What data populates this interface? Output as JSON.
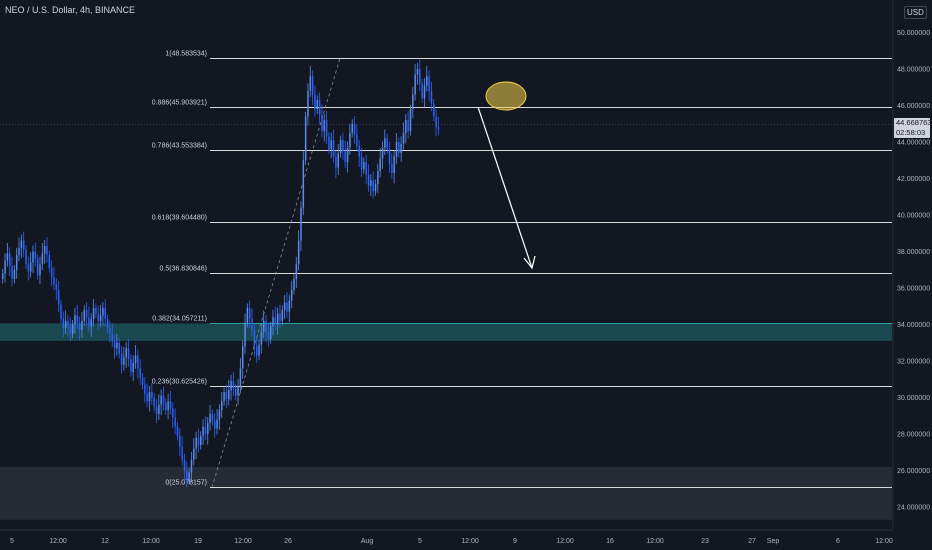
{
  "header": {
    "title": "NEO / U.S. Dollar, 4h, BINANCE",
    "currency": "USD"
  },
  "price_badge": {
    "price": "44.668763",
    "countdown": "02:58:03"
  },
  "colors": {
    "background": "#131722",
    "candle": "#2962ff",
    "candle_light": "#5b8def",
    "fib_line": "#d9d9d9",
    "fib_highlight": "#26a69a",
    "zone_teal": "#1e5a5f",
    "zone_gray": "#2a2e39",
    "ellipse": "#f2d04a",
    "arrow": "#ffffff"
  },
  "chart_data": {
    "type": "candlestick",
    "yaxis": {
      "labels": [
        "50.000000",
        "48.000000",
        "46.000000",
        "44.000000",
        "42.000000",
        "40.000000",
        "38.000000",
        "36.000000",
        "34.000000",
        "32.000000",
        "30.000000",
        "28.000000",
        "26.000000",
        "24.000000"
      ],
      "values": [
        50,
        48,
        46,
        44,
        42,
        40,
        38,
        36,
        34,
        32,
        30,
        28,
        26,
        24
      ],
      "ylim": [
        23.2,
        51.2
      ]
    },
    "xaxis": {
      "labels": [
        "5",
        "12:00",
        "12",
        "12:00",
        "19",
        "12:00",
        "26",
        "Aug",
        "5",
        "12:00",
        "9",
        "12:00",
        "16",
        "12:00",
        "23",
        "27",
        "Sep",
        "6",
        "12:00"
      ]
    },
    "fib_levels": [
      {
        "ratio": "1",
        "value": 48.583534,
        "label": "1(48.583534)"
      },
      {
        "ratio": "0.886",
        "value": 45.903921,
        "label": "0.886(45.903921)"
      },
      {
        "ratio": "0.786",
        "value": 43.553384,
        "label": "0.786(43.553384)"
      },
      {
        "ratio": "0.618",
        "value": 39.60448,
        "label": "0.618(39.604480)"
      },
      {
        "ratio": "0.5",
        "value": 36.830846,
        "label": "0.5(36.830846)"
      },
      {
        "ratio": "0.382",
        "value": 34.057211,
        "label": "0.382(34.057211)",
        "highlight": true
      },
      {
        "ratio": "0.236",
        "value": 30.625426,
        "label": "0.236(30.625426)"
      },
      {
        "ratio": "0",
        "value": 25.078157,
        "label": "0(25.078157)"
      }
    ],
    "zones": [
      {
        "from": 33.1,
        "to": 34.057211,
        "type": "teal"
      },
      {
        "from": 23.3,
        "to": 26.2,
        "type": "gray"
      }
    ],
    "closes": [
      36.8,
      37.5,
      37.9,
      37.2,
      36.5,
      37.0,
      37.8,
      38.2,
      38.6,
      38.1,
      37.3,
      36.9,
      37.4,
      38.0,
      37.6,
      36.7,
      37.3,
      37.9,
      38.3,
      37.8,
      37.1,
      36.6,
      36.2,
      35.9,
      35.1,
      34.3,
      33.8,
      34.2,
      33.9,
      33.5,
      34.0,
      34.5,
      34.1,
      33.7,
      34.2,
      34.8,
      34.4,
      33.9,
      34.3,
      34.9,
      34.6,
      34.2,
      34.5,
      34.9,
      34.3,
      33.8,
      33.5,
      33.1,
      32.7,
      33.0,
      32.4,
      31.8,
      32.2,
      32.7,
      32.1,
      31.4,
      31.9,
      32.3,
      31.6,
      31.1,
      30.7,
      30.2,
      29.8,
      30.3,
      30.0,
      29.5,
      29.1,
      29.6,
      30.1,
      29.7,
      29.3,
      29.8,
      29.4,
      28.9,
      28.4,
      27.9,
      27.3,
      26.6,
      26.0,
      25.5,
      25.9,
      26.6,
      27.2,
      27.8,
      27.4,
      27.9,
      28.4,
      28.0,
      28.6,
      29.1,
      28.7,
      28.3,
      28.8,
      29.3,
      29.8,
      30.3,
      29.9,
      30.4,
      30.9,
      30.5,
      30.1,
      30.6,
      31.6,
      32.8,
      34.1,
      34.9,
      34.3,
      33.7,
      32.8,
      32.3,
      32.9,
      33.6,
      34.2,
      33.6,
      33.2,
      33.9,
      34.4,
      34.0,
      34.6,
      34.2,
      34.8,
      35.2,
      34.7,
      35.3,
      35.9,
      36.5,
      37.3,
      38.6,
      40.4,
      43.0,
      45.4,
      46.8,
      47.6,
      46.6,
      45.8,
      46.3,
      45.5,
      44.6,
      45.2,
      44.3,
      43.6,
      44.1,
      43.2,
      42.6,
      43.4,
      44.1,
      43.5,
      42.9,
      43.7,
      44.5,
      45.0,
      44.4,
      43.8,
      43.2,
      42.5,
      42.9,
      42.2,
      41.6,
      41.9,
      41.3,
      41.7,
      42.4,
      43.1,
      43.7,
      44.2,
      43.6,
      42.8,
      42.3,
      43.2,
      44.0,
      43.4,
      43.9,
      44.5,
      45.2,
      44.6,
      45.8,
      46.6,
      47.7,
      48.0,
      47.2,
      46.4,
      47.1,
      47.6,
      46.8,
      46.1,
      45.4,
      44.8,
      44.7
    ]
  }
}
